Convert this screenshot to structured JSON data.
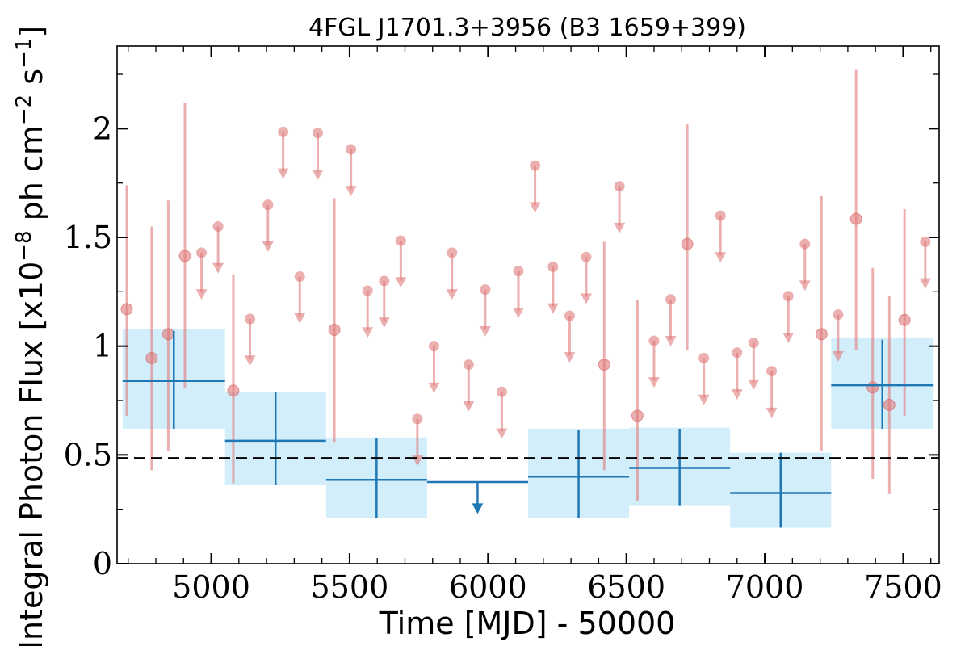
{
  "chart_data": {
    "type": "scatter",
    "title": "4FGL J1701.3+3956 (B3 1659+399)",
    "xlabel": "Time [MJD] - 50000",
    "ylabel_base": "Integral Photon Flux [x10",
    "ylabel_exp1": "−8",
    "ylabel_mid": " ph cm",
    "ylabel_exp2": "−2",
    "ylabel_s": " s",
    "ylabel_exp3": "−1",
    "ylabel_end": "]",
    "xlim": [
      4660,
      7630
    ],
    "ylim": [
      0,
      2.38
    ],
    "xticks": [
      {
        "v": 5000,
        "label": "5000"
      },
      {
        "v": 5500,
        "label": "5500"
      },
      {
        "v": 6000,
        "label": "6000"
      },
      {
        "v": 6500,
        "label": "6500"
      },
      {
        "v": 7000,
        "label": "7000"
      },
      {
        "v": 7500,
        "label": "7500"
      }
    ],
    "yticks": [
      {
        "v": 0,
        "label": "0"
      },
      {
        "v": 0.5,
        "label": "0.5"
      },
      {
        "v": 1,
        "label": "1"
      },
      {
        "v": 1.5,
        "label": "1.5"
      },
      {
        "v": 2,
        "label": "2"
      }
    ],
    "reference_line": 0.485,
    "colors": {
      "points": "#e07a7a",
      "bins": "#1f77b4",
      "bin_fill": "#d2eefb"
    },
    "short_bins": {
      "name": "",
      "detections": [
        {
          "x": 4695,
          "y": 1.17,
          "lo": 0.68,
          "hi": 1.74
        },
        {
          "x": 4785,
          "y": 0.945,
          "lo": 0.43,
          "hi": 1.55
        },
        {
          "x": 4845,
          "y": 1.055,
          "lo": 0.52,
          "hi": 1.67
        },
        {
          "x": 4905,
          "y": 1.415,
          "lo": 0.81,
          "hi": 2.12
        },
        {
          "x": 5080,
          "y": 0.795,
          "lo": 0.37,
          "hi": 1.33
        },
        {
          "x": 5445,
          "y": 1.075,
          "lo": 0.56,
          "hi": 1.68
        },
        {
          "x": 6420,
          "y": 0.915,
          "lo": 0.43,
          "hi": 1.48
        },
        {
          "x": 6540,
          "y": 0.68,
          "lo": 0.29,
          "hi": 1.21
        },
        {
          "x": 6720,
          "y": 1.47,
          "lo": 0.98,
          "hi": 2.02
        },
        {
          "x": 7205,
          "y": 1.055,
          "lo": 0.52,
          "hi": 1.69
        },
        {
          "x": 7330,
          "y": 1.585,
          "lo": 0.98,
          "hi": 2.27
        },
        {
          "x": 7390,
          "y": 0.81,
          "lo": 0.39,
          "hi": 1.36
        },
        {
          "x": 7450,
          "y": 0.73,
          "lo": 0.32,
          "hi": 1.23
        },
        {
          "x": 7505,
          "y": 1.12,
          "lo": 0.68,
          "hi": 1.63
        }
      ],
      "upper_limits": [
        {
          "x": 4965,
          "y": 1.43
        },
        {
          "x": 5025,
          "y": 1.55
        },
        {
          "x": 5140,
          "y": 1.125
        },
        {
          "x": 5205,
          "y": 1.65
        },
        {
          "x": 5260,
          "y": 1.985
        },
        {
          "x": 5320,
          "y": 1.32
        },
        {
          "x": 5385,
          "y": 1.98
        },
        {
          "x": 5505,
          "y": 1.905
        },
        {
          "x": 5565,
          "y": 1.255
        },
        {
          "x": 5625,
          "y": 1.3
        },
        {
          "x": 5685,
          "y": 1.485
        },
        {
          "x": 5745,
          "y": 0.665
        },
        {
          "x": 5805,
          "y": 1.0
        },
        {
          "x": 5870,
          "y": 1.43
        },
        {
          "x": 5930,
          "y": 0.915
        },
        {
          "x": 5990,
          "y": 1.26
        },
        {
          "x": 6050,
          "y": 0.79
        },
        {
          "x": 6110,
          "y": 1.345
        },
        {
          "x": 6170,
          "y": 1.83
        },
        {
          "x": 6235,
          "y": 1.365
        },
        {
          "x": 6295,
          "y": 1.14
        },
        {
          "x": 6355,
          "y": 1.41
        },
        {
          "x": 6475,
          "y": 1.735
        },
        {
          "x": 6600,
          "y": 1.025
        },
        {
          "x": 6660,
          "y": 1.215
        },
        {
          "x": 6780,
          "y": 0.945
        },
        {
          "x": 6840,
          "y": 1.6
        },
        {
          "x": 6900,
          "y": 0.97
        },
        {
          "x": 6960,
          "y": 1.015
        },
        {
          "x": 7025,
          "y": 0.885
        },
        {
          "x": 7085,
          "y": 1.23
        },
        {
          "x": 7145,
          "y": 1.47
        },
        {
          "x": 7265,
          "y": 1.145
        },
        {
          "x": 7580,
          "y": 1.48
        }
      ]
    },
    "long_bins": {
      "name": "",
      "detections": [
        {
          "x0": 4680,
          "x1": 5050,
          "y": 0.84,
          "lo": 0.62,
          "hi": 1.07,
          "band_lo": 0.62,
          "band_hi": 1.08
        },
        {
          "x0": 5050,
          "x1": 5415,
          "y": 0.565,
          "lo": 0.36,
          "hi": 0.79,
          "band_lo": 0.36,
          "band_hi": 0.79
        },
        {
          "x0": 5415,
          "x1": 5780,
          "y": 0.385,
          "lo": 0.21,
          "hi": 0.575,
          "band_lo": 0.21,
          "band_hi": 0.58
        },
        {
          "x0": 6145,
          "x1": 6510,
          "y": 0.4,
          "lo": 0.21,
          "hi": 0.615,
          "band_lo": 0.21,
          "band_hi": 0.62
        },
        {
          "x0": 6510,
          "x1": 6875,
          "y": 0.44,
          "lo": 0.265,
          "hi": 0.62,
          "band_lo": 0.265,
          "band_hi": 0.625
        },
        {
          "x0": 6875,
          "x1": 7240,
          "y": 0.325,
          "lo": 0.165,
          "hi": 0.51,
          "band_lo": 0.165,
          "band_hi": 0.51
        },
        {
          "x0": 7240,
          "x1": 7610,
          "y": 0.82,
          "lo": 0.62,
          "hi": 1.03,
          "band_lo": 0.62,
          "band_hi": 1.04
        }
      ],
      "upper_limits": [
        {
          "x0": 5780,
          "x1": 6145,
          "y": 0.375
        }
      ]
    }
  }
}
